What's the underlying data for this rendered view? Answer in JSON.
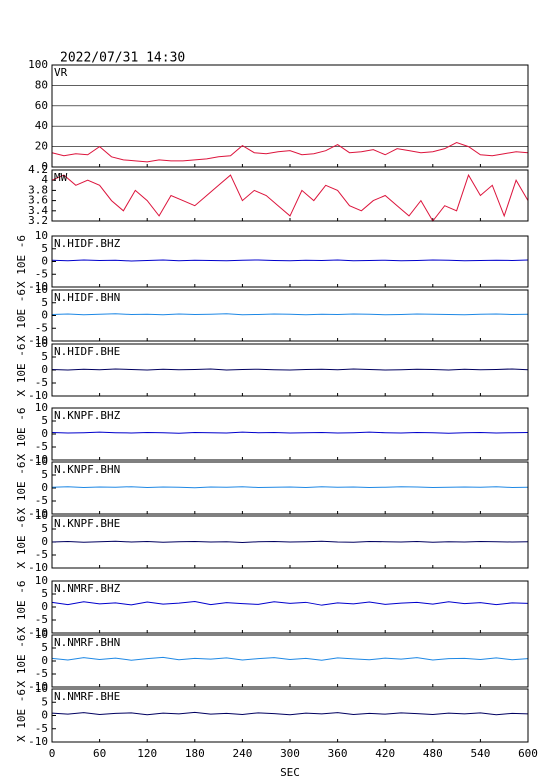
{
  "chart_data": [
    {
      "type": "line",
      "title": "2022/07/31 14:30",
      "grid": true,
      "x": [
        0,
        15,
        30,
        45,
        60,
        75,
        90,
        105,
        120,
        135,
        150,
        165,
        180,
        195,
        210,
        225,
        240,
        255,
        270,
        285,
        300,
        315,
        330,
        345,
        360,
        375,
        390,
        405,
        420,
        435,
        450,
        465,
        480,
        495,
        510,
        525,
        540,
        555,
        570,
        585,
        600
      ],
      "series": [
        {
          "name": "VR",
          "color": "#dc143c",
          "values": [
            14,
            11,
            13,
            12,
            20,
            10,
            7,
            6,
            5,
            7,
            6,
            6,
            7,
            8,
            10,
            11,
            21,
            14,
            13,
            15,
            16,
            12,
            13,
            16,
            22,
            14,
            15,
            17,
            12,
            18,
            16,
            14,
            15,
            18,
            24,
            20,
            12,
            11,
            13,
            15,
            14
          ]
        }
      ],
      "xlim": [
        0,
        600
      ],
      "xticks": [
        0,
        60,
        120,
        180,
        240,
        300,
        360,
        420,
        480,
        540,
        600
      ],
      "ylim": [
        0,
        100
      ],
      "yticks": [
        0,
        20,
        40,
        60,
        80,
        100
      ]
    },
    {
      "type": "line",
      "grid": false,
      "x": [
        0,
        15,
        30,
        45,
        60,
        75,
        90,
        105,
        120,
        135,
        150,
        165,
        180,
        195,
        210,
        225,
        240,
        255,
        270,
        285,
        300,
        315,
        330,
        345,
        360,
        375,
        390,
        405,
        420,
        435,
        450,
        465,
        480,
        495,
        510,
        525,
        540,
        555,
        570,
        585,
        600
      ],
      "series": [
        {
          "name": "MW",
          "color": "#dc143c",
          "values": [
            4.0,
            4.1,
            3.9,
            4.0,
            3.9,
            3.6,
            3.4,
            3.8,
            3.6,
            3.3,
            3.7,
            3.6,
            3.5,
            3.7,
            3.9,
            4.1,
            3.6,
            3.8,
            3.7,
            3.5,
            3.3,
            3.8,
            3.6,
            3.9,
            3.8,
            3.5,
            3.4,
            3.6,
            3.7,
            3.5,
            3.3,
            3.6,
            3.2,
            3.5,
            3.4,
            4.1,
            3.7,
            3.9,
            3.3,
            4.0,
            3.6
          ]
        }
      ],
      "xlim": [
        0,
        600
      ],
      "xticks": [
        0,
        60,
        120,
        180,
        240,
        300,
        360,
        420,
        480,
        540,
        600
      ],
      "ylim": [
        3.2,
        4.2
      ],
      "yticks": [
        3.2,
        3.4,
        3.6,
        3.8,
        4,
        4.2
      ]
    },
    {
      "type": "line",
      "grid": false,
      "ylabel": "X 10E -6",
      "x": [
        0,
        20,
        40,
        60,
        80,
        100,
        120,
        140,
        160,
        180,
        200,
        220,
        240,
        260,
        280,
        300,
        320,
        340,
        360,
        380,
        400,
        420,
        440,
        460,
        480,
        500,
        520,
        540,
        560,
        580,
        600
      ],
      "series": [
        {
          "name": "N.HIDF.BHZ",
          "color": "#0000cc",
          "values": [
            0.5,
            0.3,
            0.6,
            0.4,
            0.5,
            0.2,
            0.4,
            0.6,
            0.3,
            0.5,
            0.4,
            0.3,
            0.5,
            0.6,
            0.4,
            0.3,
            0.5,
            0.4,
            0.6,
            0.3,
            0.4,
            0.5,
            0.3,
            0.4,
            0.6,
            0.5,
            0.3,
            0.4,
            0.5,
            0.4,
            0.6
          ]
        }
      ],
      "xlim": [
        0,
        600
      ],
      "xticks": [
        0,
        60,
        120,
        180,
        240,
        300,
        360,
        420,
        480,
        540,
        600
      ],
      "ylim": [
        -10,
        10
      ],
      "yticks": [
        -10,
        -5,
        0,
        5,
        10
      ]
    },
    {
      "type": "line",
      "grid": false,
      "ylabel": "X 10E -6",
      "x": [
        0,
        20,
        40,
        60,
        80,
        100,
        120,
        140,
        160,
        180,
        200,
        220,
        240,
        260,
        280,
        300,
        320,
        340,
        360,
        380,
        400,
        420,
        440,
        460,
        480,
        500,
        520,
        540,
        560,
        580,
        600
      ],
      "series": [
        {
          "name": "N.HIDF.BHN",
          "color": "#1e88e5",
          "values": [
            0.4,
            0.6,
            0.3,
            0.5,
            0.7,
            0.4,
            0.5,
            0.3,
            0.6,
            0.4,
            0.5,
            0.7,
            0.3,
            0.4,
            0.6,
            0.5,
            0.3,
            0.5,
            0.4,
            0.6,
            0.5,
            0.3,
            0.4,
            0.6,
            0.5,
            0.4,
            0.3,
            0.5,
            0.6,
            0.4,
            0.5
          ]
        }
      ],
      "xlim": [
        0,
        600
      ],
      "xticks": [
        0,
        60,
        120,
        180,
        240,
        300,
        360,
        420,
        480,
        540,
        600
      ],
      "ylim": [
        -10,
        10
      ],
      "yticks": [
        -10,
        -5,
        0,
        5,
        10
      ]
    },
    {
      "type": "line",
      "grid": false,
      "ylabel": "X 10E -6",
      "x": [
        0,
        20,
        40,
        60,
        80,
        100,
        120,
        140,
        160,
        180,
        200,
        220,
        240,
        260,
        280,
        300,
        320,
        340,
        360,
        380,
        400,
        420,
        440,
        460,
        480,
        500,
        520,
        540,
        560,
        580,
        600
      ],
      "series": [
        {
          "name": "N.HIDF.BHE",
          "color": "#000060",
          "values": [
            0.2,
            0.0,
            0.3,
            0.1,
            0.4,
            0.2,
            0.0,
            0.3,
            0.1,
            0.2,
            0.4,
            0.0,
            0.2,
            0.3,
            0.1,
            0.0,
            0.2,
            0.3,
            0.1,
            0.4,
            0.2,
            0.0,
            0.1,
            0.3,
            0.2,
            0.0,
            0.3,
            0.1,
            0.2,
            0.4,
            0.1
          ]
        }
      ],
      "xlim": [
        0,
        600
      ],
      "xticks": [
        0,
        60,
        120,
        180,
        240,
        300,
        360,
        420,
        480,
        540,
        600
      ],
      "ylim": [
        -10,
        10
      ],
      "yticks": [
        -10,
        -5,
        0,
        5,
        10
      ]
    },
    {
      "type": "line",
      "grid": false,
      "ylabel": "X 10E -6",
      "x": [
        0,
        20,
        40,
        60,
        80,
        100,
        120,
        140,
        160,
        180,
        200,
        220,
        240,
        260,
        280,
        300,
        320,
        340,
        360,
        380,
        400,
        420,
        440,
        460,
        480,
        500,
        520,
        540,
        560,
        580,
        600
      ],
      "series": [
        {
          "name": "N.KNPF.BHZ",
          "color": "#0000cc",
          "values": [
            0.6,
            0.4,
            0.5,
            0.7,
            0.5,
            0.4,
            0.6,
            0.5,
            0.3,
            0.6,
            0.5,
            0.4,
            0.7,
            0.5,
            0.6,
            0.4,
            0.5,
            0.6,
            0.4,
            0.5,
            0.7,
            0.5,
            0.4,
            0.6,
            0.5,
            0.3,
            0.5,
            0.6,
            0.4,
            0.5,
            0.6
          ]
        }
      ],
      "xlim": [
        0,
        600
      ],
      "xticks": [
        0,
        60,
        120,
        180,
        240,
        300,
        360,
        420,
        480,
        540,
        600
      ],
      "ylim": [
        -10,
        10
      ],
      "yticks": [
        -10,
        -5,
        0,
        5,
        10
      ]
    },
    {
      "type": "line",
      "grid": false,
      "ylabel": "X 10E -6",
      "x": [
        0,
        20,
        40,
        60,
        80,
        100,
        120,
        140,
        160,
        180,
        200,
        220,
        240,
        260,
        280,
        300,
        320,
        340,
        360,
        380,
        400,
        420,
        440,
        460,
        480,
        500,
        520,
        540,
        560,
        580,
        600
      ],
      "series": [
        {
          "name": "N.KNPF.BHN",
          "color": "#1e88e5",
          "values": [
            0.3,
            0.5,
            0.2,
            0.4,
            0.3,
            0.5,
            0.2,
            0.4,
            0.3,
            0.1,
            0.4,
            0.3,
            0.5,
            0.2,
            0.3,
            0.4,
            0.2,
            0.5,
            0.3,
            0.4,
            0.2,
            0.3,
            0.5,
            0.4,
            0.2,
            0.3,
            0.4,
            0.3,
            0.5,
            0.2,
            0.3
          ]
        }
      ],
      "xlim": [
        0,
        600
      ],
      "xticks": [
        0,
        60,
        120,
        180,
        240,
        300,
        360,
        420,
        480,
        540,
        600
      ],
      "ylim": [
        -10,
        10
      ],
      "yticks": [
        -10,
        -5,
        0,
        5,
        10
      ]
    },
    {
      "type": "line",
      "grid": false,
      "ylabel": "X 10E -6",
      "x": [
        0,
        20,
        40,
        60,
        80,
        100,
        120,
        140,
        160,
        180,
        200,
        220,
        240,
        260,
        280,
        300,
        320,
        340,
        360,
        380,
        400,
        420,
        440,
        460,
        480,
        500,
        520,
        540,
        560,
        580,
        600
      ],
      "series": [
        {
          "name": "N.KNPF.BHE",
          "color": "#000060",
          "values": [
            0.0,
            0.2,
            -0.1,
            0.1,
            0.3,
            0.0,
            0.2,
            -0.1,
            0.1,
            0.2,
            0.0,
            0.1,
            -0.2,
            0.1,
            0.2,
            0.0,
            0.1,
            0.3,
            0.0,
            -0.1,
            0.2,
            0.1,
            0.0,
            0.2,
            -0.1,
            0.1,
            0.0,
            0.2,
            0.1,
            0.0,
            0.1
          ]
        }
      ],
      "xlim": [
        0,
        600
      ],
      "xticks": [
        0,
        60,
        120,
        180,
        240,
        300,
        360,
        420,
        480,
        540,
        600
      ],
      "ylim": [
        -10,
        10
      ],
      "yticks": [
        -10,
        -5,
        0,
        5,
        10
      ]
    },
    {
      "type": "line",
      "grid": false,
      "ylabel": "X 10E -6",
      "x": [
        0,
        20,
        40,
        60,
        80,
        100,
        120,
        140,
        160,
        180,
        200,
        220,
        240,
        260,
        280,
        300,
        320,
        340,
        360,
        380,
        400,
        420,
        440,
        460,
        480,
        500,
        520,
        540,
        560,
        580,
        600
      ],
      "series": [
        {
          "name": "N.NMRF.BHZ",
          "color": "#0000cc",
          "values": [
            1.8,
            0.9,
            2.0,
            1.2,
            1.6,
            0.8,
            1.9,
            1.1,
            1.5,
            2.1,
            0.9,
            1.7,
            1.3,
            1.0,
            2.0,
            1.4,
            1.8,
            0.7,
            1.6,
            1.2,
            1.9,
            1.0,
            1.5,
            1.8,
            1.1,
            2.0,
            1.3,
            1.7,
            0.9,
            1.6,
            1.4
          ]
        }
      ],
      "xlim": [
        0,
        600
      ],
      "xticks": [
        0,
        60,
        120,
        180,
        240,
        300,
        360,
        420,
        480,
        540,
        600
      ],
      "ylim": [
        -10,
        10
      ],
      "yticks": [
        -10,
        -5,
        0,
        5,
        10
      ]
    },
    {
      "type": "line",
      "grid": false,
      "ylabel": "X 10E -6",
      "x": [
        0,
        20,
        40,
        60,
        80,
        100,
        120,
        140,
        160,
        180,
        200,
        220,
        240,
        260,
        280,
        300,
        320,
        340,
        360,
        380,
        400,
        420,
        440,
        460,
        480,
        500,
        520,
        540,
        560,
        580,
        600
      ],
      "series": [
        {
          "name": "N.NMRF.BHN",
          "color": "#1e88e5",
          "values": [
            1.0,
            0.4,
            1.3,
            0.6,
            1.1,
            0.3,
            0.9,
            1.4,
            0.5,
            1.0,
            0.7,
            1.2,
            0.4,
            0.9,
            1.3,
            0.6,
            1.0,
            0.3,
            1.2,
            0.8,
            0.5,
            1.1,
            0.7,
            1.3,
            0.4,
            0.9,
            1.0,
            0.6,
            1.2,
            0.5,
            0.9
          ]
        }
      ],
      "xlim": [
        0,
        600
      ],
      "xticks": [
        0,
        60,
        120,
        180,
        240,
        300,
        360,
        420,
        480,
        540,
        600
      ],
      "ylim": [
        -10,
        10
      ],
      "yticks": [
        -10,
        -5,
        0,
        5,
        10
      ]
    },
    {
      "type": "line",
      "grid": false,
      "ylabel": "X 10E -6",
      "xlabel": "SEC",
      "x": [
        0,
        20,
        40,
        60,
        80,
        100,
        120,
        140,
        160,
        180,
        200,
        220,
        240,
        260,
        280,
        300,
        320,
        340,
        360,
        380,
        400,
        420,
        440,
        460,
        480,
        500,
        520,
        540,
        560,
        580,
        600
      ],
      "series": [
        {
          "name": "N.NMRF.BHE",
          "color": "#000060",
          "values": [
            0.9,
            0.5,
            1.1,
            0.4,
            0.8,
            1.0,
            0.3,
            0.9,
            0.6,
            1.2,
            0.5,
            0.8,
            0.4,
            1.0,
            0.7,
            0.3,
            0.9,
            0.6,
            1.1,
            0.4,
            0.8,
            0.5,
            1.0,
            0.7,
            0.4,
            0.9,
            0.6,
            1.0,
            0.3,
            0.8,
            0.6
          ]
        }
      ],
      "xlim": [
        0,
        600
      ],
      "xticks": [
        0,
        60,
        120,
        180,
        240,
        300,
        360,
        420,
        480,
        540,
        600
      ],
      "ylim": [
        -10,
        10
      ],
      "yticks": [
        -10,
        -5,
        0,
        5,
        10
      ]
    }
  ]
}
